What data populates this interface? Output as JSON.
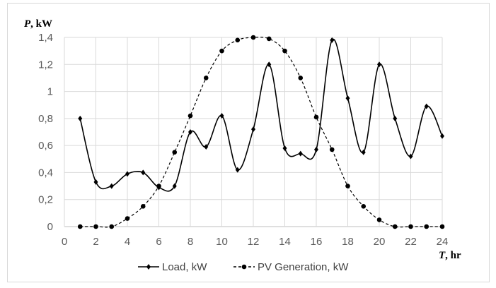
{
  "chart_data": {
    "type": "line",
    "xlabel_var": "T",
    "xlabel_unit": ", hr",
    "ylabel_var": "P",
    "ylabel_unit": ", kW",
    "xlim": [
      0,
      24
    ],
    "ylim": [
      0,
      1.4
    ],
    "xticks": [
      "0",
      "2",
      "4",
      "6",
      "8",
      "10",
      "12",
      "14",
      "16",
      "18",
      "20",
      "22",
      "24"
    ],
    "yticks": [
      "0",
      "0,2",
      "0,4",
      "0,6",
      "0,8",
      "1",
      "1,2",
      "1,4"
    ],
    "grid": true,
    "legend_position": "bottom",
    "smooth": true,
    "x": [
      1,
      2,
      3,
      4,
      5,
      6,
      7,
      8,
      9,
      10,
      11,
      12,
      13,
      14,
      15,
      16,
      17,
      18,
      19,
      20,
      21,
      22,
      23,
      24
    ],
    "series": [
      {
        "name": "Load, kW",
        "style": "solid",
        "marker": "diamond",
        "color": "#000000",
        "values": [
          0.8,
          0.33,
          0.3,
          0.39,
          0.4,
          0.29,
          0.3,
          0.7,
          0.59,
          0.82,
          0.42,
          0.72,
          1.2,
          0.58,
          0.54,
          0.57,
          1.38,
          0.95,
          0.55,
          1.2,
          0.8,
          0.52,
          0.89,
          0.67
        ]
      },
      {
        "name": "PV Generation, kW",
        "style": "dashed",
        "marker": "circle",
        "color": "#000000",
        "values": [
          0,
          0,
          0,
          0.06,
          0.15,
          0.3,
          0.55,
          0.82,
          1.1,
          1.3,
          1.38,
          1.4,
          1.39,
          1.3,
          1.1,
          0.81,
          0.57,
          0.3,
          0.15,
          0.05,
          0,
          0,
          0,
          0
        ]
      }
    ]
  }
}
